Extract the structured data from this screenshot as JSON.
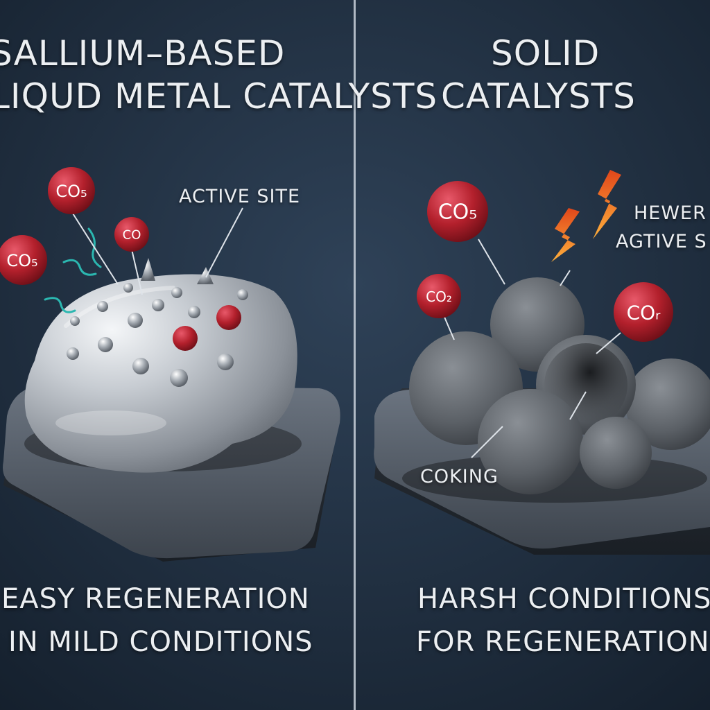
{
  "colors": {
    "background": "#1b2a3c",
    "divider": "#c9d1db",
    "molecule": "#b3202c",
    "liquid_metal": "#c4c8cd",
    "solid_particle": "#5d6166",
    "platform": "#4e5661",
    "flame": "#f07a1c",
    "swirl": "#2bb7b0"
  },
  "left_panel": {
    "heading": [
      "SALLIUM–BASED",
      "LIQUD METAL CATALYSTS"
    ],
    "annotation": "ACTIVE SITE",
    "molecule_labels": [
      "CO₅",
      "CO",
      "CO₅"
    ],
    "caption": [
      "EASY REGENERATION",
      "IN MILD CONDITIONS"
    ],
    "icons": [
      "liquid-metal-droplet-icon",
      "swirl-icon",
      "spike-icon"
    ]
  },
  "right_panel": {
    "heading": [
      "SOLID",
      "CATALYSTS"
    ],
    "annotation": [
      "HEWER C",
      "AGTIVE S"
    ],
    "molecule_labels": [
      "CO₅",
      "CO₂",
      "COᵣ"
    ],
    "coking_label": "COKING",
    "caption": [
      "HARSH CONDITIONS",
      "FOR REGENERATION"
    ],
    "icons": [
      "solid-particle-icon",
      "flame-icon"
    ]
  }
}
